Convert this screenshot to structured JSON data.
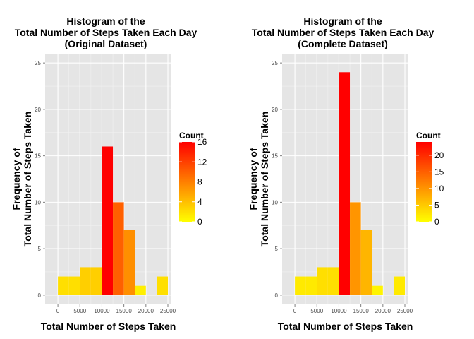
{
  "chart_data": [
    {
      "type": "bar",
      "title_lines": [
        "Histogram of the",
        "Total Number of Steps Taken Each Day",
        "(Original Dataset)"
      ],
      "xlabel": "Total Number of Steps Taken",
      "ylabel_lines": [
        "Frequency of",
        "Total Number of Steps Taken"
      ],
      "xlim": [
        -2900,
        25800
      ],
      "ylim": [
        -1,
        26
      ],
      "x_ticks": [
        0,
        5000,
        10000,
        15000,
        20000,
        25000
      ],
      "x_tick_labels": [
        "0",
        "5000",
        "10000",
        "15000",
        "20000",
        "25000"
      ],
      "y_ticks": [
        0,
        5,
        10,
        15,
        20,
        25
      ],
      "y_tick_labels": [
        "0",
        "5",
        "10",
        "15",
        "20",
        "25"
      ],
      "grid": true,
      "legend_title": "Count",
      "legend_ticks": [
        0,
        4,
        8,
        12,
        16
      ],
      "legend_tick_labels": [
        "0",
        "4",
        "8",
        "12",
        "16"
      ],
      "legend_max": 16,
      "color_low": "#FFFF00",
      "color_high": "#FF0000",
      "bins": [
        {
          "x0": 0,
          "x1": 2500,
          "count": 2
        },
        {
          "x0": 2500,
          "x1": 5000,
          "count": 2
        },
        {
          "x0": 5000,
          "x1": 7500,
          "count": 3
        },
        {
          "x0": 7500,
          "x1": 10000,
          "count": 3
        },
        {
          "x0": 10000,
          "x1": 12500,
          "count": 16
        },
        {
          "x0": 12500,
          "x1": 15000,
          "count": 10
        },
        {
          "x0": 15000,
          "x1": 17500,
          "count": 7
        },
        {
          "x0": 17500,
          "x1": 20000,
          "count": 1
        },
        {
          "x0": 20000,
          "x1": 22500,
          "count": 0
        },
        {
          "x0": 22500,
          "x1": 25000,
          "count": 2
        }
      ]
    },
    {
      "type": "bar",
      "title_lines": [
        "Histogram of the",
        "Total Number of Steps Taken Each Day",
        "(Complete Dataset)"
      ],
      "xlabel": "Total Number of Steps Taken",
      "ylabel_lines": [
        "Frequency of",
        "Total Number of Steps Taken"
      ],
      "xlim": [
        -2900,
        25800
      ],
      "ylim": [
        -1,
        26
      ],
      "x_ticks": [
        0,
        5000,
        10000,
        15000,
        20000,
        25000
      ],
      "x_tick_labels": [
        "0",
        "5000",
        "10000",
        "15000",
        "20000",
        "25000"
      ],
      "y_ticks": [
        0,
        5,
        10,
        15,
        20,
        25
      ],
      "y_tick_labels": [
        "0",
        "5",
        "10",
        "15",
        "20",
        "25"
      ],
      "grid": true,
      "legend_title": "Count",
      "legend_ticks": [
        0,
        5,
        10,
        15,
        20
      ],
      "legend_tick_labels": [
        "0",
        "5",
        "10",
        "15",
        "20"
      ],
      "legend_max": 24,
      "color_low": "#FFFF00",
      "color_high": "#FF0000",
      "bins": [
        {
          "x0": 0,
          "x1": 2500,
          "count": 2
        },
        {
          "x0": 2500,
          "x1": 5000,
          "count": 2
        },
        {
          "x0": 5000,
          "x1": 7500,
          "count": 3
        },
        {
          "x0": 7500,
          "x1": 10000,
          "count": 3
        },
        {
          "x0": 10000,
          "x1": 12500,
          "count": 24
        },
        {
          "x0": 12500,
          "x1": 15000,
          "count": 10
        },
        {
          "x0": 15000,
          "x1": 17500,
          "count": 7
        },
        {
          "x0": 17500,
          "x1": 20000,
          "count": 1
        },
        {
          "x0": 20000,
          "x1": 22500,
          "count": 0
        },
        {
          "x0": 22500,
          "x1": 25000,
          "count": 2
        }
      ]
    }
  ]
}
